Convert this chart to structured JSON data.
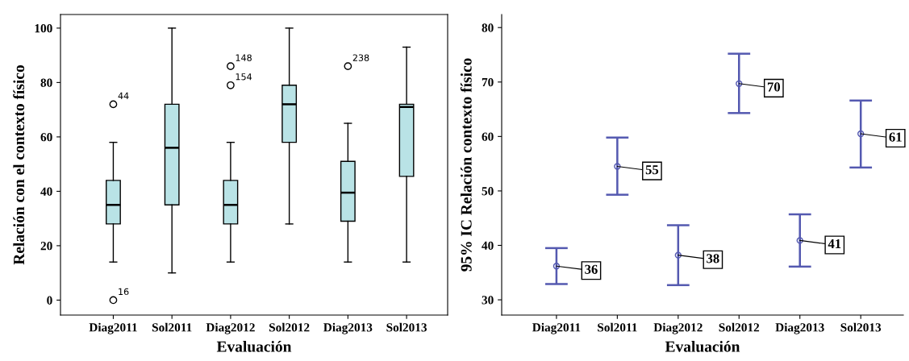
{
  "chart_data": [
    {
      "type": "box",
      "xlabel": "Evaluación",
      "ylabel": "Relación con el contexto físico",
      "categories": [
        "Diag2011",
        "Sol2011",
        "Diag2012",
        "Sol2012",
        "Diag2013",
        "Sol2013"
      ],
      "color": "#b9e3e6",
      "boxes": [
        {
          "low": 14,
          "q1": 28,
          "median": 35,
          "q3": 44,
          "high": 58,
          "outliers": [
            72,
            0
          ]
        },
        {
          "low": 10,
          "q1": 35,
          "median": 56,
          "q3": 72,
          "high": 100
        },
        {
          "low": 14,
          "q1": 28,
          "median": 35,
          "q3": 44,
          "high": 58,
          "outliers": [
            86,
            79
          ]
        },
        {
          "low": 28,
          "q1": 58,
          "median": 72,
          "q3": 79,
          "high": 100
        },
        {
          "low": 14,
          "q1": 29,
          "median": 39.5,
          "q3": 51,
          "high": 65,
          "outliers": [
            86
          ]
        },
        {
          "low": 14,
          "q1": 45.5,
          "median": 71,
          "q3": 72,
          "high": 93
        }
      ],
      "ylim": [
        -5.5,
        105
      ],
      "yticks": [
        0,
        20,
        40,
        60,
        80,
        100
      ],
      "grid": false,
      "annotations": [
        "44",
        "16",
        "148",
        "154",
        "238"
      ]
    },
    {
      "type": "scatter",
      "xlabel": "Evaluación",
      "ylabel": "95% IC Relación contexto físico",
      "categories": [
        "Diag2011",
        "Sol2011",
        "Diag2012",
        "Sol2012",
        "Diag2013",
        "Sol2013"
      ],
      "color": "#5459b0",
      "marker": "circle",
      "values": [
        36.2,
        54.5,
        38.2,
        69.7,
        40.9,
        60.5
      ],
      "errors": [
        [
          32.9,
          39.5
        ],
        [
          49.3,
          59.8
        ],
        [
          32.7,
          43.7
        ],
        [
          64.3,
          75.2
        ],
        [
          36.1,
          45.7
        ],
        [
          54.3,
          66.6
        ]
      ],
      "value_labels": [
        "36",
        "55",
        "38",
        "70",
        "41",
        "61"
      ],
      "ylim": [
        27.2,
        82.4
      ],
      "yticks": [
        30,
        40,
        50,
        60,
        70,
        80
      ],
      "grid": false
    }
  ]
}
